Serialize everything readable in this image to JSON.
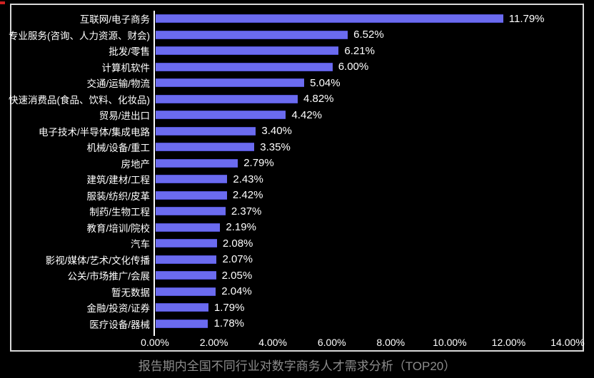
{
  "title": "报告期内全国不同行业对数字商务人才需求分析（TOP20）",
  "chart_data": {
    "type": "bar",
    "orientation": "horizontal",
    "title": "报告期内全国不同行业对数字商务人才需求分析（TOP20）",
    "xlabel": "",
    "ylabel": "",
    "xlim": [
      0,
      14
    ],
    "grid": false,
    "legend": false,
    "categories": [
      "互联网/电子商务",
      "专业服务(咨询、人力资源、财会)",
      "批发/零售",
      "计算机软件",
      "交通/运输/物流",
      "快速消费品(食品、饮料、化妆品)",
      "贸易/进出口",
      "电子技术/半导体/集成电路",
      "机械/设备/重工",
      "房地产",
      "建筑/建材/工程",
      "服装/纺织/皮革",
      "制药/生物工程",
      "教育/培训/院校",
      "汽车",
      "影视/媒体/艺术/文化传播",
      "公关/市场推广/会展",
      "暂无数据",
      "金融/投资/证券",
      "医疗设备/器械"
    ],
    "values": [
      11.79,
      6.52,
      6.21,
      6.0,
      5.04,
      4.82,
      4.42,
      3.4,
      3.35,
      2.79,
      2.43,
      2.42,
      2.37,
      2.19,
      2.08,
      2.07,
      2.05,
      2.04,
      1.79,
      1.78
    ],
    "value_labels": [
      "11.79%",
      "6.52%",
      "6.21%",
      "6.00%",
      "5.04%",
      "4.82%",
      "4.42%",
      "3.40%",
      "3.35%",
      "2.79%",
      "2.43%",
      "2.42%",
      "2.37%",
      "2.19%",
      "2.08%",
      "2.07%",
      "2.05%",
      "2.04%",
      "1.79%",
      "1.78%"
    ],
    "x_tick_labels": [
      "0.00%",
      "2.00%",
      "4.00%",
      "6.00%",
      "8.00%",
      "10.00%",
      "12.00%",
      "14.00%"
    ],
    "colors": {
      "background": "#000000",
      "bar_fill": "#6b6bef",
      "bar_edge": "#5151cf",
      "axis_line": "#ffffff",
      "label_text": "#ffffff",
      "title_text": "#8d8d8d",
      "frame_border": "#d9d9d9",
      "corner_mark": "#cf2121"
    }
  }
}
